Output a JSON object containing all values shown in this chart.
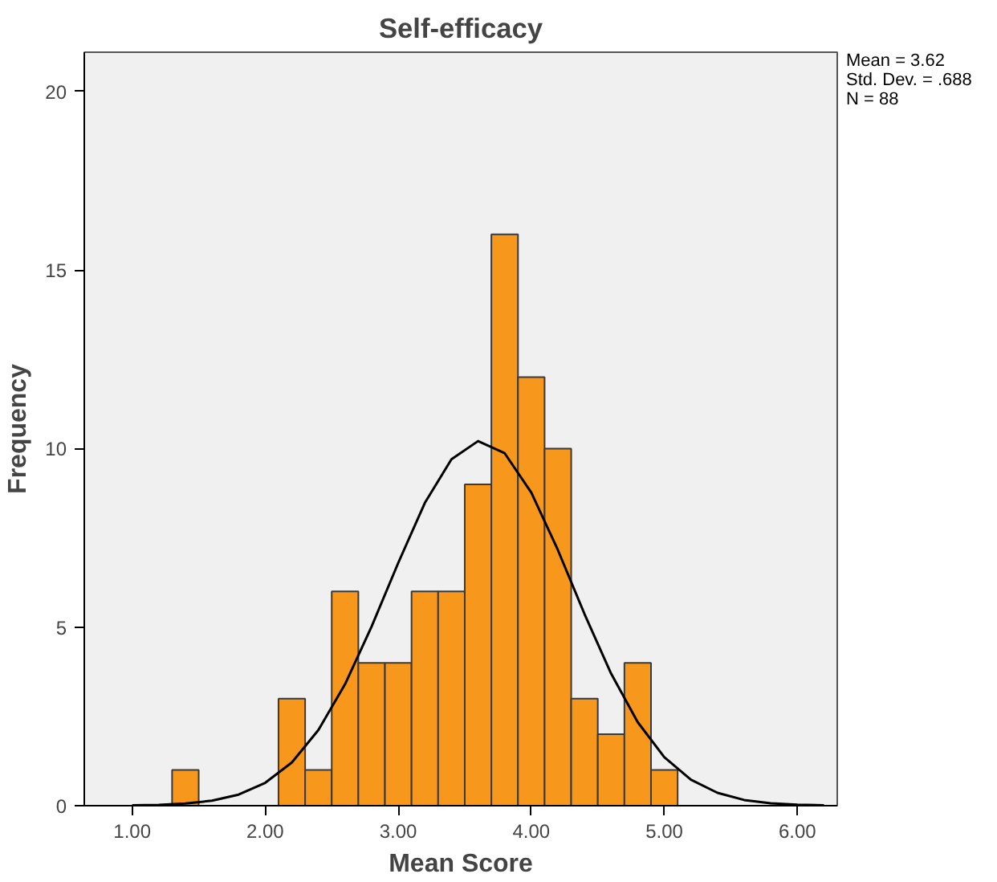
{
  "chart_data": {
    "type": "histogram",
    "title": "Self-efficacy",
    "xlabel": "Mean Score",
    "ylabel": "Frequency",
    "bins": [
      1.3,
      1.5,
      1.7,
      1.9,
      2.1,
      2.3,
      2.5,
      2.7,
      2.9,
      3.1,
      3.3,
      3.5,
      3.7,
      3.9,
      4.1,
      4.3,
      4.5,
      4.7,
      4.9,
      5.1
    ],
    "values": [
      1,
      0,
      0,
      0,
      3,
      1,
      6,
      4,
      4,
      6,
      6,
      9,
      16,
      12,
      10,
      3,
      2,
      4,
      1
    ],
    "color": "#f7981d",
    "series": [
      {
        "type": "line",
        "color": "#000000",
        "x": [
          1.0,
          1.2,
          1.4,
          1.6,
          1.8,
          2.0,
          2.2,
          2.4,
          2.6,
          2.8,
          3.0,
          3.2,
          3.4,
          3.6,
          3.8,
          4.0,
          4.2,
          4.4,
          4.6,
          4.8,
          5.0,
          5.2,
          5.4,
          5.6,
          5.8,
          6.0,
          6.2
        ],
        "values": [
          0.01,
          0.02,
          0.06,
          0.14,
          0.31,
          0.64,
          1.21,
          2.12,
          3.4,
          5.02,
          6.8,
          8.48,
          9.7,
          10.21,
          9.87,
          8.77,
          7.16,
          5.37,
          3.7,
          2.34,
          1.36,
          0.73,
          0.36,
          0.16,
          0.07,
          0.03,
          0.01
        ]
      }
    ],
    "xlim": [
      0.64,
      6.3
    ],
    "ylim": [
      0,
      21.1
    ],
    "xticks": [
      {
        "value": 1,
        "label": "1.00"
      },
      {
        "value": 2,
        "label": "2.00"
      },
      {
        "value": 3,
        "label": "3.00"
      },
      {
        "value": 4,
        "label": "4.00"
      },
      {
        "value": 5,
        "label": "5.00"
      },
      {
        "value": 6,
        "label": "6.00"
      }
    ],
    "yticks": [
      0,
      5,
      10,
      15,
      20
    ],
    "grid": false,
    "marker": "none",
    "line_style": "solid",
    "annotations": [
      "Mean = 3.62",
      "Std. Dev. = .688",
      "N = 88"
    ]
  }
}
